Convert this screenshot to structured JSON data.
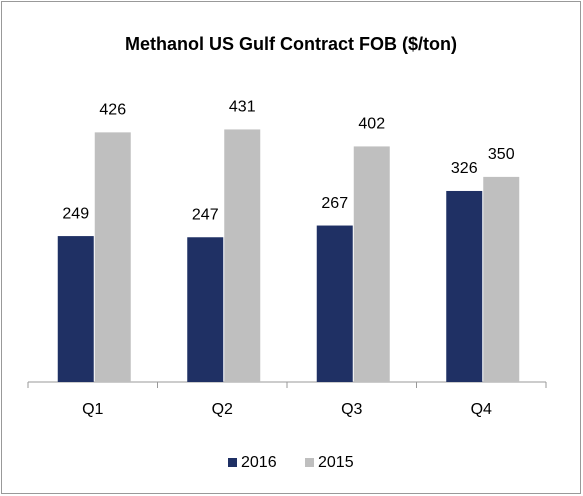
{
  "chart_data": {
    "type": "bar",
    "title": "Methanol US Gulf Contract FOB ($/ton)",
    "categories": [
      "Q1",
      "Q2",
      "Q3",
      "Q4"
    ],
    "series": [
      {
        "name": "2016",
        "color": "#1f3064",
        "values": [
          249,
          247,
          267,
          326
        ]
      },
      {
        "name": "2015",
        "color": "#bfbfbf",
        "values": [
          426,
          431,
          402,
          350
        ]
      }
    ],
    "ylim": [
      0,
      500
    ],
    "legend": "bottom"
  }
}
